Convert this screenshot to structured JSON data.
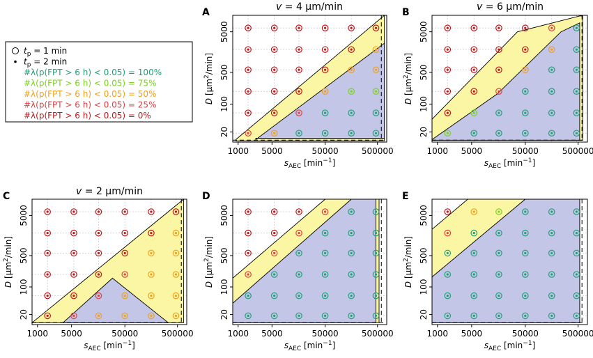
{
  "legend": {
    "items": [
      {
        "symbol": "open-circle",
        "label": "t_p = 1 min",
        "sub": "p",
        "pre": "t",
        "post": " = 1 min",
        "color": "#000000"
      },
      {
        "symbol": "dot",
        "label": "t_p = 2 min",
        "sub": "p",
        "pre": "t",
        "post": " = 2 min",
        "color": "#000000"
      },
      {
        "symbol": "none",
        "label": "#λ(p(FPT > 6 h) < 0.05) = 100%",
        "color": "#20a07a"
      },
      {
        "symbol": "none",
        "label": "#λ(p(FPT > 6 h) < 0.05) = 75%",
        "color": "#7ad321"
      },
      {
        "symbol": "none",
        "label": "#λ(p(FPT > 6 h) < 0.05) = 50%",
        "color": "#f0a020"
      },
      {
        "symbol": "none",
        "label": "#λ(p(FPT > 6 h) < 0.05) = 25%",
        "color": "#e24040"
      },
      {
        "symbol": "none",
        "label": "#λ(p(FPT > 6 h) < 0.05) = 0%",
        "color": "#c0181c"
      }
    ]
  },
  "colors": {
    "c100": "#20a07a",
    "c75": "#7ad321",
    "c50": "#f0a020",
    "c25": "#e24040",
    "c0": "#c0181c",
    "yellow": "#fbf6a4",
    "blue": "#c3c6e6",
    "grid": "#cccccc"
  },
  "chart_data": [
    {
      "panel": "A",
      "type": "scatter",
      "title": "v = 4 μm/min",
      "xlabel": "s_AEC [min⁻¹]",
      "ylabel": "D [μm²/min]",
      "x_ticks": [
        "1000",
        "5000",
        "50000",
        "500000"
      ],
      "y_ticks": [
        "20",
        "100",
        "500",
        "5000"
      ],
      "x_values": [
        2000,
        5000,
        20000,
        50000,
        200000,
        500000
      ],
      "y_values": [
        20,
        50,
        200,
        500,
        2000,
        5000
      ],
      "status_rows_top_to_bottom": [
        "000000",
        "000002",
        "000022",
        "000233",
        "001444",
        "124444"
      ]
    },
    {
      "panel": "B",
      "type": "scatter",
      "title": "v = 6 μm/min",
      "xlabel": "s_AEC [min⁻¹]",
      "ylabel": "D [μm²/min]",
      "x_ticks": [
        "1000",
        "5000",
        "50000",
        "500000"
      ],
      "y_ticks": [
        "20",
        "100",
        "500",
        "5000"
      ],
      "x_values": [
        2000,
        5000,
        20000,
        50000,
        200000,
        500000
      ],
      "y_values": [
        20,
        50,
        200,
        500,
        2000,
        5000
      ],
      "status_rows_top_to_bottom": [
        "000014",
        "000024",
        "000244",
        "001444",
        "034444",
        "344444"
      ]
    },
    {
      "panel": "C",
      "type": "scatter",
      "title": "v = 2 μm/min",
      "xlabel": "s_AEC [min⁻¹]",
      "ylabel": "D [μm²/min]",
      "x_ticks": [
        "1000",
        "5000",
        "50000",
        "500000"
      ],
      "y_ticks": [
        "20",
        "100",
        "500",
        "5000"
      ],
      "x_values": [
        2000,
        5000,
        20000,
        50000,
        200000,
        500000
      ],
      "y_values": [
        20,
        50,
        200,
        500,
        2000,
        5000
      ],
      "status_rows_top_to_bottom": [
        "000000",
        "000002",
        "000022",
        "000122",
        "001222",
        "012222"
      ]
    },
    {
      "panel": "D",
      "type": "scatter",
      "title": "",
      "xlabel": "s_AEC [min⁻¹]",
      "ylabel": "D [μm²/min]",
      "x_ticks": [
        "1000",
        "5000",
        "50000",
        "500000"
      ],
      "y_ticks": [
        "20",
        "100",
        "500",
        "5000"
      ],
      "x_values": [
        2000,
        5000,
        20000,
        50000,
        200000,
        500000
      ],
      "y_values": [
        20,
        50,
        200,
        500,
        2000,
        5000
      ],
      "status_rows_top_to_bottom": [
        "000144",
        "001444",
        "014444",
        "144444",
        "444444",
        "444444"
      ]
    },
    {
      "panel": "E",
      "type": "scatter",
      "title": "",
      "xlabel": "s_AEC [min⁻¹]",
      "ylabel": "D [μm²/min]",
      "x_ticks": [
        "1000",
        "5000",
        "50000",
        "500000"
      ],
      "y_ticks": [
        "20",
        "100",
        "500",
        "5000"
      ],
      "x_values": [
        2000,
        5000,
        20000,
        50000,
        200000,
        500000
      ],
      "y_values": [
        20,
        50,
        200,
        500,
        2000,
        5000
      ],
      "status_rows_top_to_bottom": [
        "023444",
        "144444",
        "444444",
        "444444",
        "444444",
        "444444"
      ]
    }
  ]
}
